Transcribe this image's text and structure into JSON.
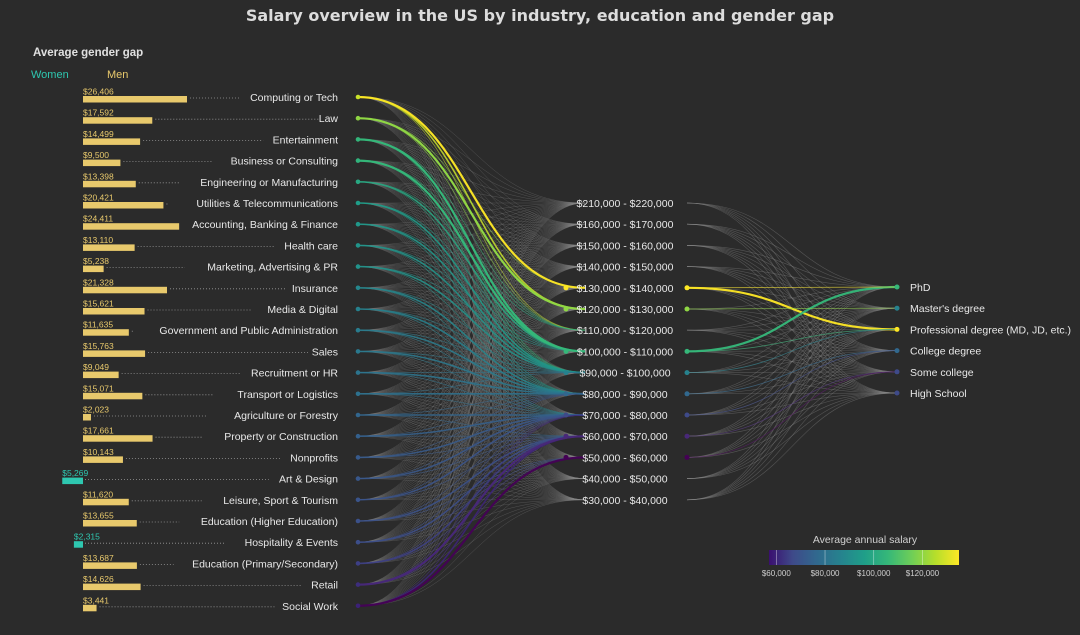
{
  "chart_data": {
    "type": "sankey",
    "title": "Salary overview in the US by industry, education and gender gap",
    "gender_gap": {
      "heading": "Average gender gap",
      "women_label": "Women",
      "men_label": "Men",
      "women_color": "#2ec7b0",
      "men_color": "#e8c96c"
    },
    "industries": [
      {
        "name": "Computing or Tech",
        "gap": "$26,406",
        "gap_value": 26406,
        "favors": "men",
        "avg_salary": 128000
      },
      {
        "name": "Law",
        "gap": "$17,592",
        "gap_value": 17592,
        "favors": "men",
        "avg_salary": 120000
      },
      {
        "name": "Entertainment",
        "gap": "$14,499",
        "gap_value": 14499,
        "favors": "men",
        "avg_salary": 105000
      },
      {
        "name": "Business or Consulting",
        "gap": "$9,500",
        "gap_value": 9500,
        "favors": "men",
        "avg_salary": 104000
      },
      {
        "name": "Engineering or Manufacturing",
        "gap": "$13,398",
        "gap_value": 13398,
        "favors": "men",
        "avg_salary": 100000
      },
      {
        "name": "Utilities & Telecommunications",
        "gap": "$20,421",
        "gap_value": 20421,
        "favors": "men",
        "avg_salary": 96000
      },
      {
        "name": "Accounting, Banking & Finance",
        "gap": "$24,411",
        "gap_value": 24411,
        "favors": "men",
        "avg_salary": 94000
      },
      {
        "name": "Health care",
        "gap": "$13,110",
        "gap_value": 13110,
        "favors": "men",
        "avg_salary": 93000
      },
      {
        "name": "Marketing, Advertising & PR",
        "gap": "$5,238",
        "gap_value": 5238,
        "favors": "men",
        "avg_salary": 92000
      },
      {
        "name": "Insurance",
        "gap": "$21,328",
        "gap_value": 21328,
        "favors": "men",
        "avg_salary": 88000
      },
      {
        "name": "Media & Digital",
        "gap": "$15,621",
        "gap_value": 15621,
        "favors": "men",
        "avg_salary": 86000
      },
      {
        "name": "Government and Public Administration",
        "gap": "$11,635",
        "gap_value": 11635,
        "favors": "men",
        "avg_salary": 84000
      },
      {
        "name": "Sales",
        "gap": "$15,763",
        "gap_value": 15763,
        "favors": "men",
        "avg_salary": 83000
      },
      {
        "name": "Recruitment or HR",
        "gap": "$9,049",
        "gap_value": 9049,
        "favors": "men",
        "avg_salary": 81000
      },
      {
        "name": "Transport or Logistics",
        "gap": "$15,071",
        "gap_value": 15071,
        "favors": "men",
        "avg_salary": 80000
      },
      {
        "name": "Agriculture or Forestry",
        "gap": "$2,023",
        "gap_value": 2023,
        "favors": "men",
        "avg_salary": 76000
      },
      {
        "name": "Property or Construction",
        "gap": "$17,661",
        "gap_value": 17661,
        "favors": "men",
        "avg_salary": 74000
      },
      {
        "name": "Nonprofits",
        "gap": "$10,143",
        "gap_value": 10143,
        "favors": "men",
        "avg_salary": 72000
      },
      {
        "name": "Art & Design",
        "gap": "$5,269",
        "gap_value": 5269,
        "favors": "women",
        "avg_salary": 71000
      },
      {
        "name": "Leisure, Sport & Tourism",
        "gap": "$11,620",
        "gap_value": 11620,
        "favors": "men",
        "avg_salary": 70000
      },
      {
        "name": "Education (Higher Education)",
        "gap": "$13,655",
        "gap_value": 13655,
        "favors": "men",
        "avg_salary": 69000
      },
      {
        "name": "Hospitality & Events",
        "gap": "$2,315",
        "gap_value": 2315,
        "favors": "women",
        "avg_salary": 68000
      },
      {
        "name": "Education (Primary/Secondary)",
        "gap": "$13,687",
        "gap_value": 13687,
        "favors": "men",
        "avg_salary": 65000
      },
      {
        "name": "Retail",
        "gap": "$14,626",
        "gap_value": 14626,
        "favors": "men",
        "avg_salary": 62000
      },
      {
        "name": "Social Work",
        "gap": "$3,441",
        "gap_value": 3441,
        "favors": "men",
        "avg_salary": 60000
      }
    ],
    "salary_bands": [
      {
        "label": "$210,000 - $220,000",
        "highlight": false
      },
      {
        "label": "$160,000 - $170,000",
        "highlight": false
      },
      {
        "label": "$150,000 - $160,000",
        "highlight": false
      },
      {
        "label": "$140,000 - $150,000",
        "highlight": false
      },
      {
        "label": "$130,000 - $140,000",
        "highlight": true,
        "color": "#fde725"
      },
      {
        "label": "$120,000 - $130,000",
        "highlight": true,
        "color": "#8fd744"
      },
      {
        "label": "$110,000 - $120,000",
        "highlight": false
      },
      {
        "label": "$100,000 - $110,000",
        "highlight": true,
        "color": "#35b779"
      },
      {
        "label": "$90,000 - $100,000",
        "highlight": true,
        "color": "#26828e"
      },
      {
        "label": "$80,000 - $90,000",
        "highlight": true,
        "color": "#31688e"
      },
      {
        "label": "$70,000 - $80,000",
        "highlight": true,
        "color": "#3e4a89"
      },
      {
        "label": "$60,000 - $70,000",
        "highlight": true,
        "color": "#482878"
      },
      {
        "label": "$50,000 - $60,000",
        "highlight": true,
        "color": "#440154"
      },
      {
        "label": "$40,000 - $50,000",
        "highlight": false
      },
      {
        "label": "$30,000 - $40,000",
        "highlight": false
      }
    ],
    "education": [
      {
        "label": "PhD",
        "color": "#35b779"
      },
      {
        "label": "Master's degree",
        "color": "#26828e"
      },
      {
        "label": "Professional degree (MD, JD, etc.)",
        "color": "#fde725"
      },
      {
        "label": "College degree",
        "color": "#31688e"
      },
      {
        "label": "Some college",
        "color": "#3e4a89"
      },
      {
        "label": "High School",
        "color": "#3e4a89"
      }
    ],
    "highlight_flows": [
      {
        "from": "Computing or Tech",
        "to": "$130,000 - $140,000",
        "color": "#fde725"
      },
      {
        "from": "Law",
        "to": "$120,000 - $130,000",
        "color": "#8fd744"
      },
      {
        "from": "Entertainment",
        "to": "$100,000 - $110,000",
        "color": "#35b779"
      },
      {
        "from": "Business or Consulting",
        "to": "$100,000 - $110,000",
        "color": "#35b779"
      },
      {
        "from": "Social Work",
        "to": "$50,000 - $60,000",
        "color": "#440154"
      },
      {
        "from": "Retail",
        "to": "$60,000 - $70,000",
        "color": "#482878"
      },
      {
        "from": "$130,000 - $140,000",
        "to": "Professional degree (MD, JD, etc.)",
        "color": "#fde725"
      },
      {
        "from": "$100,000 - $110,000",
        "to": "PhD",
        "color": "#35b779"
      }
    ],
    "colorbar": {
      "title": "Average annual salary",
      "ticks": [
        {
          "label": "$60,000",
          "value": 60000
        },
        {
          "label": "$80,000",
          "value": 80000
        },
        {
          "label": "$100,000",
          "value": 100000
        },
        {
          "label": "$120,000",
          "value": 120000
        }
      ],
      "range": [
        57000,
        135000
      ],
      "colors": [
        "#3b0f70",
        "#3e4a89",
        "#31688e",
        "#26828e",
        "#1f9e89",
        "#35b779",
        "#6ece58",
        "#b5de2b",
        "#fde725"
      ]
    }
  }
}
